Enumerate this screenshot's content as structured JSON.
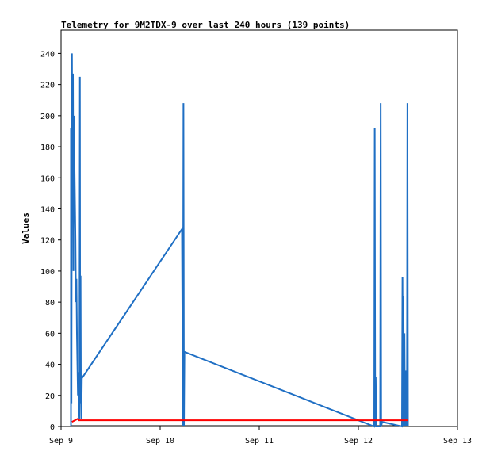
{
  "chart_data": {
    "type": "line",
    "title": "Telemetry for 9M2TDX-9 over last 240 hours (139 points)",
    "ylabel": "Values",
    "xlabel": "",
    "ylim": [
      0,
      255
    ],
    "yticks": [
      0,
      20,
      40,
      60,
      80,
      100,
      120,
      140,
      160,
      180,
      200,
      220,
      240
    ],
    "xlim": [
      0,
      4
    ],
    "xticks": [
      {
        "value": 0,
        "label": "Sep 9"
      },
      {
        "value": 1,
        "label": "Sep 10"
      },
      {
        "value": 2,
        "label": "Sep 11"
      },
      {
        "value": 3,
        "label": "Sep 12"
      },
      {
        "value": 4,
        "label": "Sep 13"
      }
    ],
    "grid": false,
    "series": [
      {
        "color": "#1f6fc4",
        "points": [
          [
            0.1,
            0
          ],
          [
            0.1,
            192
          ],
          [
            0.105,
            15
          ],
          [
            0.11,
            240
          ],
          [
            0.115,
            160
          ],
          [
            0.12,
            227
          ],
          [
            0.125,
            100
          ],
          [
            0.13,
            200
          ],
          [
            0.135,
            170
          ],
          [
            0.14,
            145
          ],
          [
            0.145,
            120
          ],
          [
            0.15,
            80
          ],
          [
            0.155,
            95
          ],
          [
            0.16,
            60
          ],
          [
            0.165,
            40
          ],
          [
            0.17,
            20
          ],
          [
            0.175,
            35
          ],
          [
            0.18,
            15
          ],
          [
            0.185,
            5
          ],
          [
            0.19,
            225
          ],
          [
            0.193,
            15
          ],
          [
            0.197,
            97
          ],
          [
            0.2,
            30
          ],
          [
            0.205,
            5
          ],
          [
            0.21,
            31
          ],
          [
            1.22,
            127
          ],
          [
            1.23,
            0
          ],
          [
            1.235,
            208
          ],
          [
            1.24,
            0
          ],
          [
            1.245,
            48
          ],
          [
            3.16,
            0
          ],
          [
            3.165,
            192
          ],
          [
            3.17,
            0
          ],
          [
            3.175,
            32
          ],
          [
            3.18,
            0
          ],
          [
            3.22,
            0
          ],
          [
            3.225,
            208
          ],
          [
            3.23,
            0
          ],
          [
            3.24,
            3
          ],
          [
            3.44,
            0
          ],
          [
            3.445,
            96
          ],
          [
            3.45,
            0
          ],
          [
            3.455,
            84
          ],
          [
            3.46,
            0
          ],
          [
            3.465,
            60
          ],
          [
            3.47,
            0
          ],
          [
            3.475,
            36
          ],
          [
            3.48,
            0
          ],
          [
            3.485,
            12
          ],
          [
            3.49,
            0
          ],
          [
            3.495,
            208
          ],
          [
            3.5,
            0
          ]
        ]
      },
      {
        "color": "#ff0000",
        "points": [
          [
            0.11,
            3
          ],
          [
            0.17,
            5
          ],
          [
            0.18,
            4
          ],
          [
            3.5,
            4
          ]
        ]
      },
      {
        "color": "#000000",
        "points": [
          [
            0.1,
            0.4
          ],
          [
            3.5,
            0.4
          ]
        ]
      }
    ]
  }
}
